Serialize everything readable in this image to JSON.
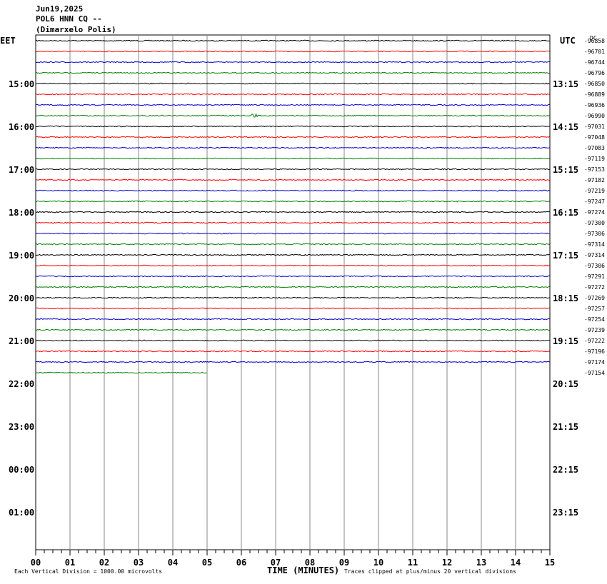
{
  "header": [
    "Jun19,2025",
    "POL6 HNN CQ --",
    "(Dimarxelo Polis)"
  ],
  "left_label": "EET",
  "right_label": "UTC",
  "dc_label": "DC",
  "left_times": [
    "15:00",
    "16:00",
    "17:00",
    "18:00",
    "19:00",
    "20:00",
    "21:00",
    "22:00",
    "23:00",
    "00:00",
    "01:00"
  ],
  "right_times": [
    "13:15",
    "14:15",
    "15:15",
    "16:15",
    "17:15",
    "18:15",
    "19:15",
    "20:15",
    "21:15",
    "22:15",
    "23:15"
  ],
  "offsets": [
    "-96858",
    "-96701",
    "-96744",
    "-96796",
    "-96850",
    "-96889",
    "-96936",
    "-96990",
    "-97031",
    "-97048",
    "-97083",
    "-97119",
    "-97153",
    "-97182",
    "-97219",
    "-97247",
    "-97274",
    "-97300",
    "-97306",
    "-97314",
    "-97314",
    "-97306",
    "-97291",
    "-97272",
    "-97269",
    "-97257",
    "-97254",
    "-97239",
    "-97222",
    "-97196",
    "-97174",
    "-97154"
  ],
  "x_ticks": [
    "00",
    "01",
    "02",
    "03",
    "04",
    "05",
    "06",
    "07",
    "08",
    "09",
    "10",
    "11",
    "12",
    "13",
    "14",
    "15"
  ],
  "x_axis_label": "TIME (MINUTES)",
  "footer_left": "Each Vertical Division = 1000.00 microvolts",
  "footer_right": "Traces clipped at plus/minus 20 vertical divisions"
}
